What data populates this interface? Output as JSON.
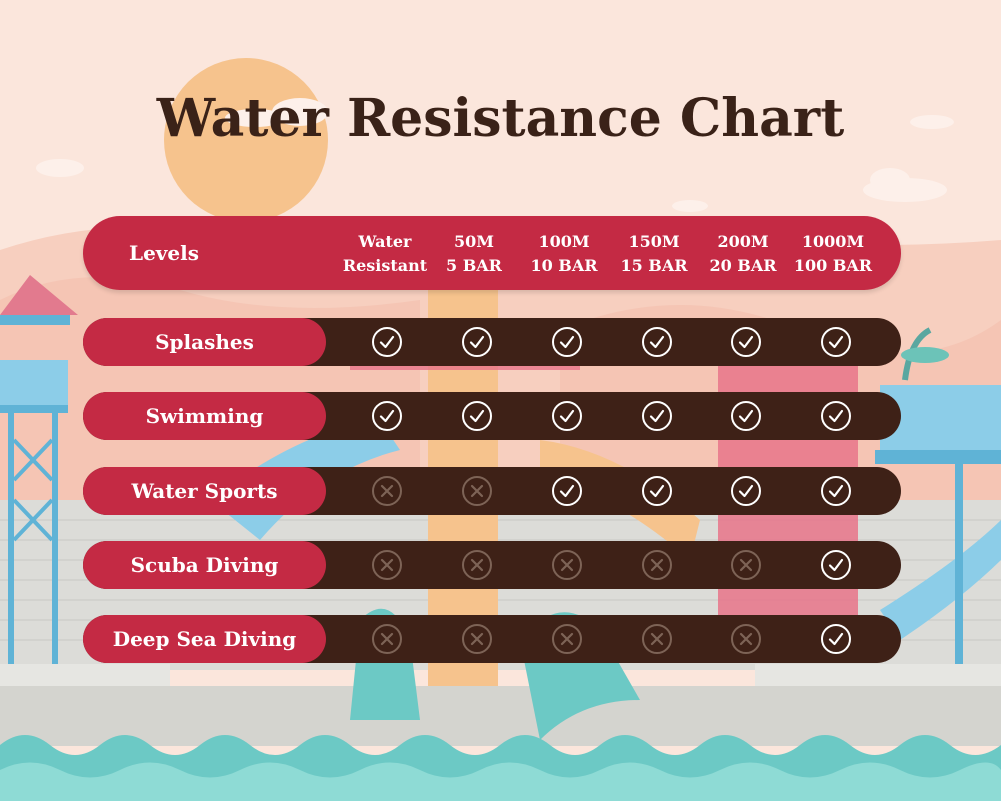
{
  "chart_data": {
    "type": "table",
    "title": "Water Resistance Chart",
    "row_header": "Levels",
    "columns": [
      [
        "Water",
        "Resistant"
      ],
      [
        "50M",
        "5 BAR"
      ],
      [
        "100M",
        "10 BAR"
      ],
      [
        "150M",
        "15 BAR"
      ],
      [
        "200M",
        "20 BAR"
      ],
      [
        "1000M",
        "100 BAR"
      ]
    ],
    "rows": [
      {
        "label": "Splashes",
        "values": [
          true,
          true,
          true,
          true,
          true,
          true
        ]
      },
      {
        "label": "Swimming",
        "values": [
          true,
          true,
          true,
          true,
          true,
          true
        ]
      },
      {
        "label": "Water Sports",
        "values": [
          false,
          false,
          true,
          true,
          true,
          true
        ]
      },
      {
        "label": "Scuba Diving",
        "values": [
          false,
          false,
          false,
          false,
          false,
          true
        ]
      },
      {
        "label": "Deep Sea Diving",
        "values": [
          false,
          false,
          false,
          false,
          false,
          true
        ]
      }
    ]
  },
  "colors": {
    "background": "#fbe6dc",
    "header": "#c42a44",
    "row": "#3e2117",
    "title": "#3a2218",
    "check": "#ffffff",
    "cross": "#7d6356"
  },
  "icons": {
    "yes": "check-circle-icon",
    "no": "x-circle-icon"
  }
}
